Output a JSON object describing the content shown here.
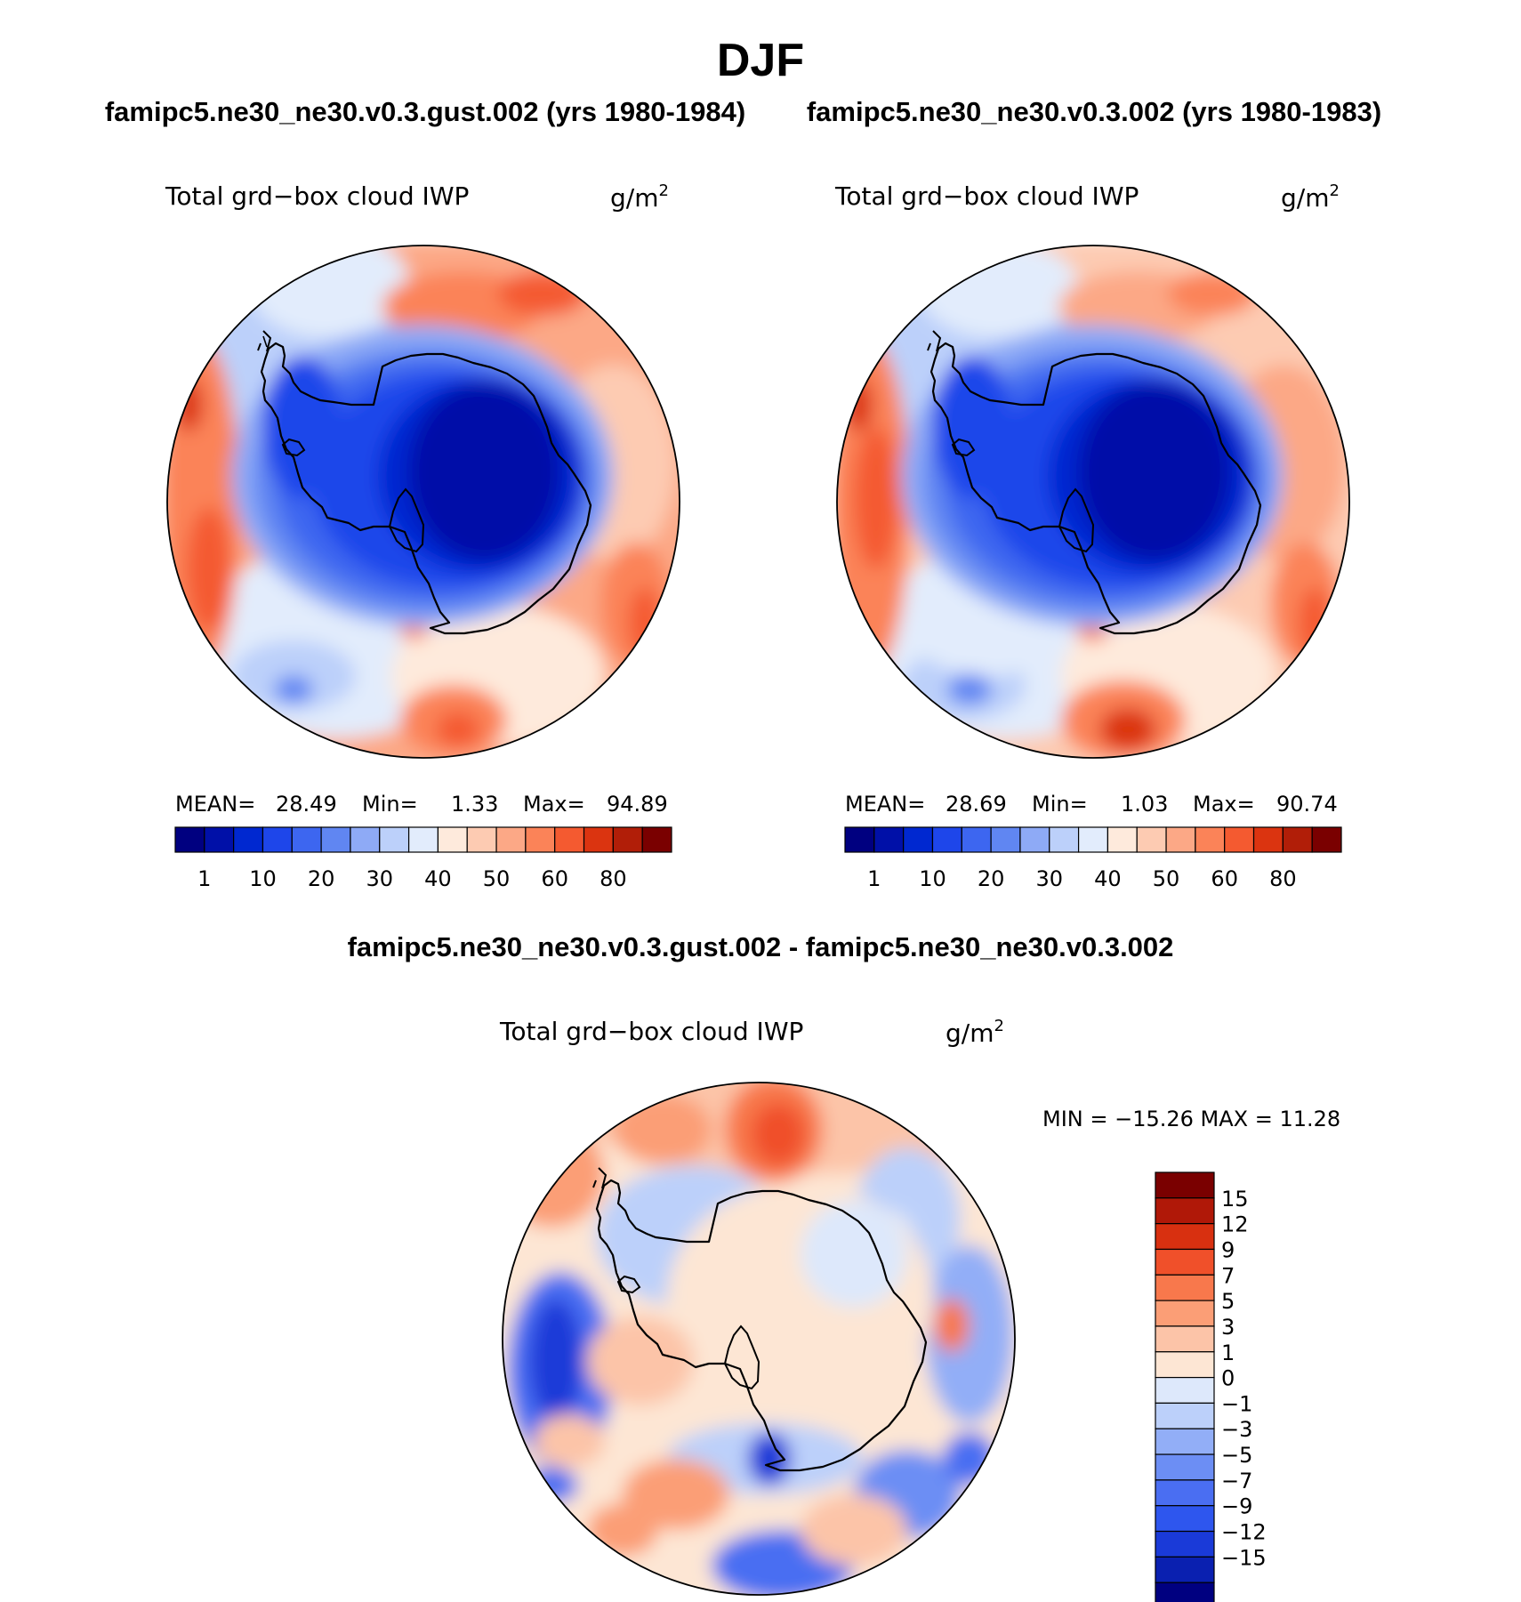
{
  "page": {
    "title": "DJF"
  },
  "colors": {
    "abs_levels": [
      "#000080",
      "#0010a8",
      "#0028d0",
      "#1e46ea",
      "#3d66f0",
      "#6086f2",
      "#8eaaf6",
      "#bcd0fa",
      "#e2ecfc",
      "#feeadc",
      "#fdcbb2",
      "#fca886",
      "#fb8358",
      "#f45a30",
      "#db3410",
      "#b11e08",
      "#7a0000"
    ],
    "diff_levels": [
      "#000080",
      "#0a20b0",
      "#1a3ad8",
      "#2e56ee",
      "#4a6ef2",
      "#6c8ef4",
      "#92aef7",
      "#bcd0fa",
      "#dde8fb",
      "#fde6d4",
      "#fcc4a8",
      "#fb9e76",
      "#f8784c",
      "#f0502a",
      "#d83010",
      "#b01808",
      "#7a0000"
    ],
    "coastline": "#000000"
  },
  "panels": [
    {
      "case": "famipc5.ne30_ne30.v0.3.gust.002 (yrs 1980-1984)",
      "variable": "Total grd−box cloud IWP",
      "units_base": "g/m",
      "units_exp": "2",
      "stats": {
        "mean_label": "MEAN=",
        "mean": "28.49",
        "min_label": "Min=",
        "min": "1.33",
        "max_label": "Max=",
        "max": "94.89"
      }
    },
    {
      "case": "famipc5.ne30_ne30.v0.3.002 (yrs 1980-1983)",
      "variable": "Total grd−box cloud IWP",
      "units_base": "g/m",
      "units_exp": "2",
      "stats": {
        "mean_label": "MEAN=",
        "mean": "28.69",
        "min_label": "Min=",
        "min": "1.03",
        "max_label": "Max=",
        "max": "90.74"
      }
    }
  ],
  "diff_panel": {
    "case": "famipc5.ne30_ne30.v0.3.gust.002 - famipc5.ne30_ne30.v0.3.002",
    "variable": "Total grd−box cloud IWP",
    "units_base": "g/m",
    "units_exp": "2",
    "stats": "MIN = −15.26 MAX =  11.28"
  },
  "chart_data": [
    {
      "type": "heatmap",
      "projection": "south polar stereographic",
      "title": "famipc5.ne30_ne30.v0.3.gust.002 (yrs 1980-1984)",
      "variable": "Total grd-box cloud IWP",
      "units": "g/m2",
      "mean": 28.49,
      "min": 1.33,
      "max": 94.89,
      "colorbar_ticks": [
        "1",
        "10",
        "20",
        "30",
        "40",
        "50",
        "60",
        "80"
      ],
      "colorbar_orientation": "horizontal"
    },
    {
      "type": "heatmap",
      "projection": "south polar stereographic",
      "title": "famipc5.ne30_ne30.v0.3.002 (yrs 1980-1983)",
      "variable": "Total grd-box cloud IWP",
      "units": "g/m2",
      "mean": 28.69,
      "min": 1.03,
      "max": 90.74,
      "colorbar_ticks": [
        "1",
        "10",
        "20",
        "30",
        "40",
        "50",
        "60",
        "80"
      ],
      "colorbar_orientation": "horizontal"
    },
    {
      "type": "heatmap",
      "projection": "south polar stereographic",
      "title": "famipc5.ne30_ne30.v0.3.gust.002 - famipc5.ne30_ne30.v0.3.002",
      "variable": "Total grd-box cloud IWP",
      "units": "g/m2",
      "min": -15.26,
      "max": 11.28,
      "colorbar_ticks": [
        "15",
        "12",
        "9",
        "7",
        "5",
        "3",
        "1",
        "0",
        "−1",
        "−3",
        "−5",
        "−7",
        "−9",
        "−12",
        "−15"
      ],
      "colorbar_orientation": "vertical"
    }
  ]
}
